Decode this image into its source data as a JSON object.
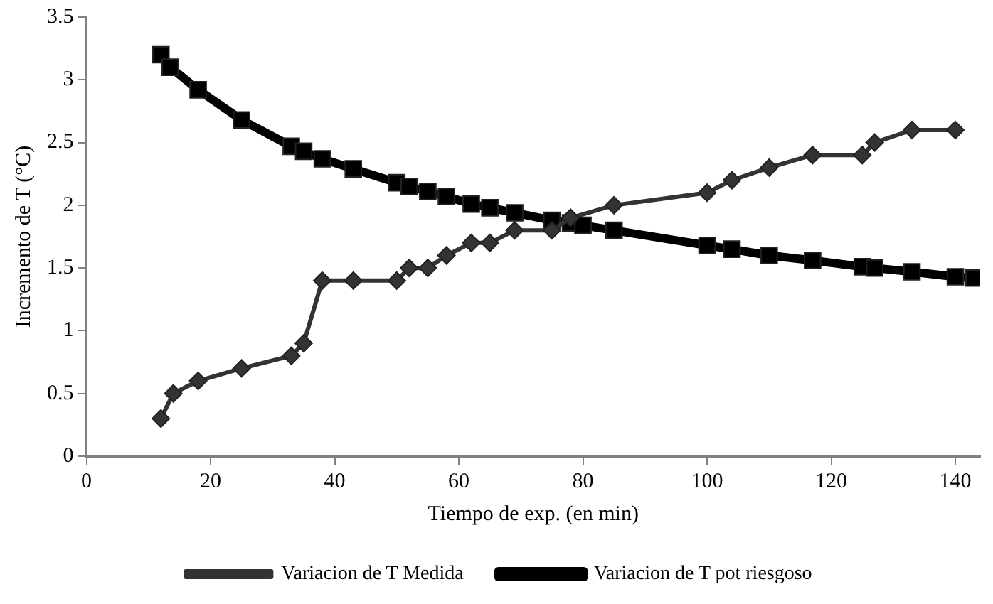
{
  "chart_data": {
    "type": "line",
    "xlabel": "Tiempo de exp. (en min)",
    "ylabel": "Incremento de T (°C)",
    "xlim": [
      0,
      144
    ],
    "xticks": [
      0,
      20,
      40,
      60,
      80,
      100,
      120,
      140
    ],
    "ylim": [
      0,
      3.5
    ],
    "yticks": [
      0,
      0.5,
      1,
      1.5,
      2,
      2.5,
      3,
      3.5
    ],
    "grid": false,
    "legend": "bottom",
    "series": [
      {
        "name": "Variacion de T Medida",
        "color": "#333333",
        "marker": "diamond",
        "x": [
          12,
          14,
          18,
          25,
          33,
          35,
          38,
          43,
          50,
          52,
          55,
          58,
          62,
          65,
          69,
          75,
          78,
          85,
          100,
          104,
          110,
          117,
          125,
          127,
          133,
          140
        ],
        "values": [
          0.3,
          0.5,
          0.6,
          0.7,
          0.8,
          0.9,
          1.4,
          1.4,
          1.4,
          1.5,
          1.5,
          1.6,
          1.7,
          1.7,
          1.8,
          1.8,
          1.9,
          2.0,
          2.1,
          2.2,
          2.3,
          2.4,
          2.4,
          2.5,
          2.6,
          2.6
        ]
      },
      {
        "name": "Variacion de T pot riesgoso",
        "color": "#000000",
        "marker": "square",
        "x": [
          12,
          13.5,
          18,
          25,
          33,
          35,
          38,
          43,
          50,
          52,
          55,
          58,
          62,
          65,
          69,
          75,
          78,
          80,
          85,
          100,
          104,
          110,
          117,
          125,
          127,
          133,
          140,
          143
        ],
        "values": [
          3.2,
          3.1,
          2.92,
          2.68,
          2.47,
          2.43,
          2.37,
          2.29,
          2.18,
          2.15,
          2.11,
          2.07,
          2.01,
          1.98,
          1.94,
          1.88,
          1.86,
          1.84,
          1.8,
          1.68,
          1.65,
          1.6,
          1.56,
          1.51,
          1.5,
          1.47,
          1.43,
          1.42
        ]
      }
    ]
  }
}
